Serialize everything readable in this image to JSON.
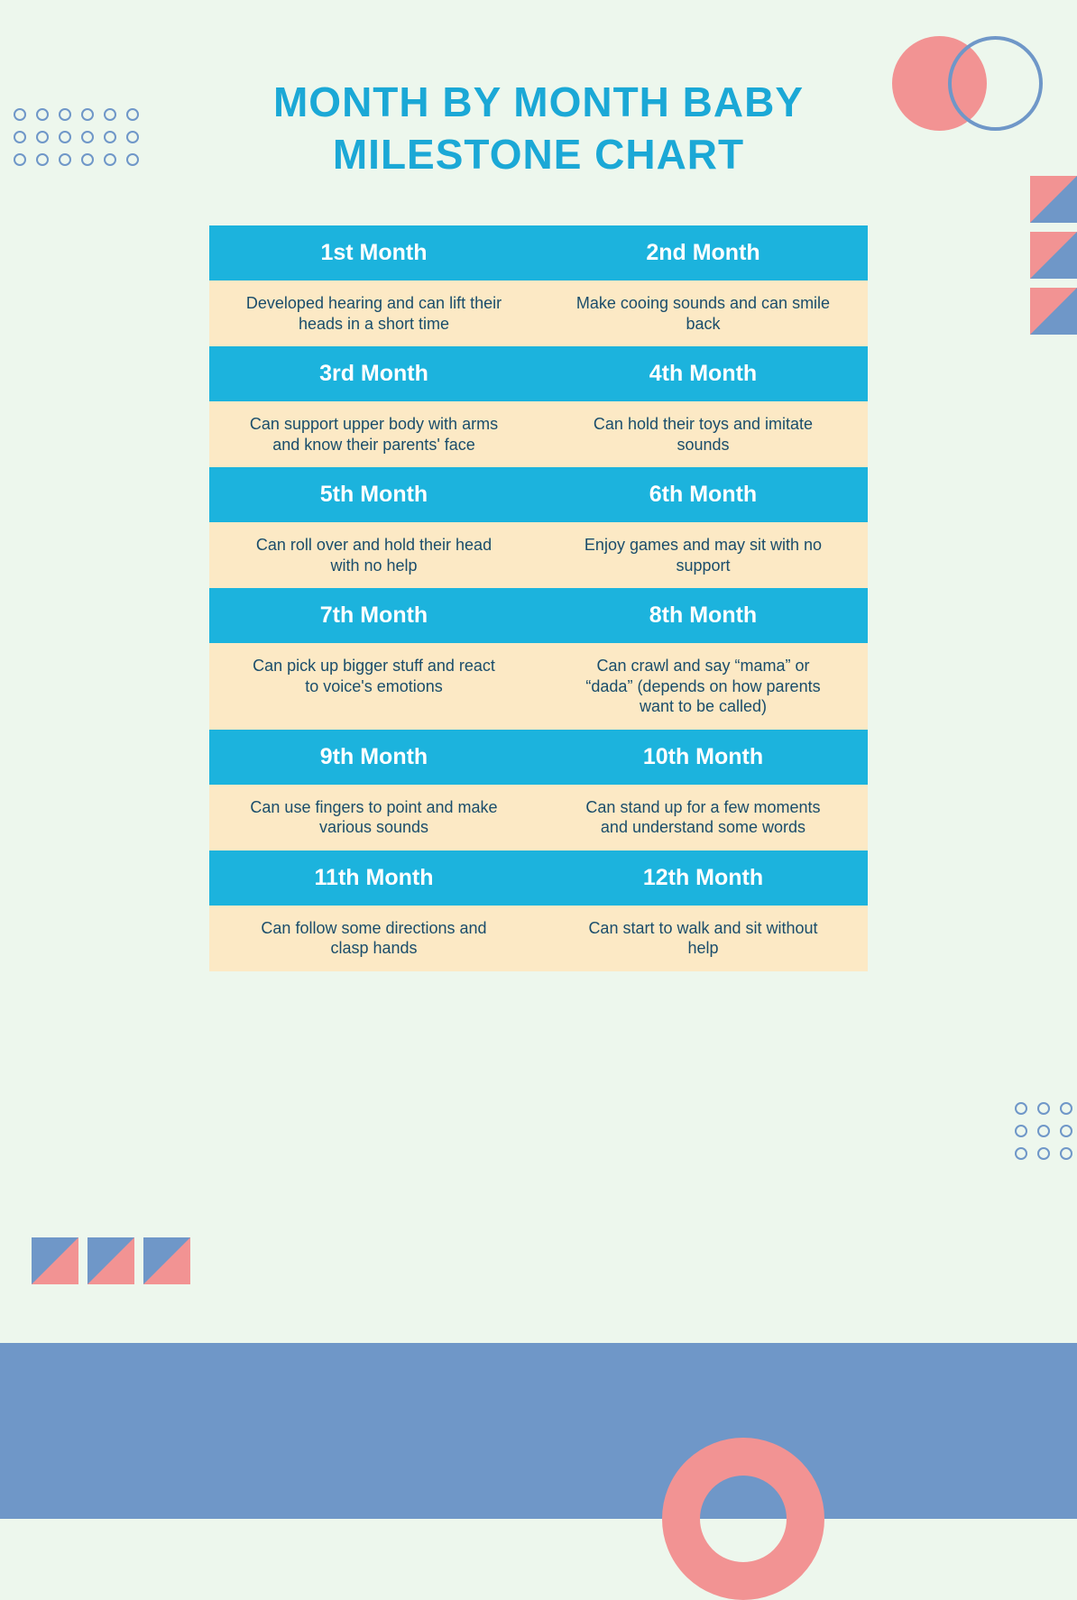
{
  "title_line1": "MONTH BY MONTH BABY",
  "title_line2": "MILESTONE CHART",
  "type": "table",
  "columns": 2,
  "header_bg": "#1cb3dd",
  "header_text_color": "#ffffff",
  "body_bg": "#fce9c5",
  "body_text_color": "#1a4d6b",
  "page_bg": "#edf7ed",
  "accent_blue": "#6f97c8",
  "accent_pink": "#f29393",
  "accent_cyan": "#1ba8d6",
  "title_fontsize": 46,
  "header_fontsize": 25,
  "body_fontsize": 18,
  "months": [
    {
      "label": "1st Month",
      "desc": "Developed hearing and can lift their heads in a short time"
    },
    {
      "label": "2nd Month",
      "desc": "Make cooing sounds and can smile back"
    },
    {
      "label": "3rd Month",
      "desc": "Can support upper body with arms and know their parents' face"
    },
    {
      "label": "4th Month",
      "desc": "Can hold their toys and imitate sounds"
    },
    {
      "label": "5th Month",
      "desc": "Can roll over and hold their head with no help"
    },
    {
      "label": "6th Month",
      "desc": "Enjoy games and may sit with no support"
    },
    {
      "label": "7th Month",
      "desc": "Can pick up bigger stuff and react to voice's emotions"
    },
    {
      "label": "8th Month",
      "desc": "Can crawl and say “mama” or “dada” (depends on how parents want to be called)"
    },
    {
      "label": "9th Month",
      "desc": "Can use fingers to point and make various sounds"
    },
    {
      "label": "10th Month",
      "desc": "Can stand up for a few moments and understand some words"
    },
    {
      "label": "11th Month",
      "desc": "Can follow some directions and clasp hands"
    },
    {
      "label": "12th Month",
      "desc": "Can start to walk and sit without help"
    }
  ],
  "decorations": {
    "dot_grid_tl": {
      "rows": 3,
      "cols": 6,
      "dot_size": 14,
      "border": 2,
      "gap": 11,
      "color": "#6f97c8"
    },
    "dot_grid_br": {
      "rows": 3,
      "cols": 4,
      "dot_size": 14,
      "border": 2,
      "gap": 11,
      "color": "#6f97c8"
    },
    "circles_tr": {
      "pink_fill": "#f29393",
      "outline_color": "#6f97c8",
      "diameter": 105,
      "outline_width": 4,
      "overlap": 62
    },
    "triangle_stack_right": {
      "count": 3,
      "size": 52,
      "gap": 10,
      "bg": "#f29393",
      "tri": "#6f97c8",
      "direction": "br"
    },
    "triangle_row_bl": {
      "count": 3,
      "size": 52,
      "gap": 10,
      "bg": "#f29393",
      "tri": "#6f97c8",
      "direction": "tl"
    },
    "footer_band": {
      "height": 195,
      "color": "#6f97c8"
    },
    "donut": {
      "outer": 180,
      "ring": 42,
      "color": "#f29393"
    }
  }
}
